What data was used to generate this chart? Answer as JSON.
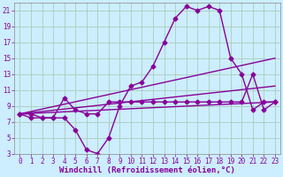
{
  "xlabel": "Windchill (Refroidissement éolien,°C)",
  "bg_color": "#cceeff",
  "line_color": "#880099",
  "grid_color": "#aaccbb",
  "xlim": [
    -0.5,
    23.5
  ],
  "ylim": [
    3,
    22
  ],
  "xticks": [
    0,
    1,
    2,
    3,
    4,
    5,
    6,
    7,
    8,
    9,
    10,
    11,
    12,
    13,
    14,
    15,
    16,
    17,
    18,
    19,
    20,
    21,
    22,
    23
  ],
  "yticks": [
    3,
    5,
    7,
    9,
    11,
    13,
    15,
    17,
    19,
    21
  ],
  "curve1_x": [
    0,
    1,
    2,
    3,
    4,
    5,
    6,
    7,
    8,
    9,
    10,
    11,
    12,
    13,
    14,
    15,
    16,
    17,
    18,
    19,
    20,
    21,
    22,
    23
  ],
  "curve1_y": [
    8,
    8,
    7.5,
    7.5,
    7.5,
    6,
    3.5,
    3,
    5,
    9,
    11.5,
    12,
    14,
    17,
    20,
    21.5,
    21,
    21.5,
    21,
    15,
    13,
    8.5,
    9.5,
    9.5
  ],
  "curve2_x": [
    0,
    1,
    2,
    3,
    4,
    5,
    6,
    7,
    8,
    9,
    10,
    11,
    12,
    13,
    14,
    15,
    16,
    17,
    18,
    19,
    20,
    21,
    22,
    23
  ],
  "curve2_y": [
    8,
    7.5,
    7.5,
    7.5,
    10,
    8.5,
    8,
    8,
    9.5,
    9.5,
    9.5,
    9.5,
    9.5,
    9.5,
    9.5,
    9.5,
    9.5,
    9.5,
    9.5,
    9.5,
    9.5,
    13,
    8.5,
    9.5
  ],
  "line3_x": [
    0,
    23
  ],
  "line3_y": [
    8,
    9.5
  ],
  "line4_x": [
    0,
    23
  ],
  "line4_y": [
    8,
    11.5
  ],
  "line5_x": [
    0,
    23
  ],
  "line5_y": [
    8,
    15
  ],
  "markersize": 2.5,
  "linewidth": 1.0,
  "xlabel_fontsize": 6.5,
  "tick_fontsize": 5.5
}
